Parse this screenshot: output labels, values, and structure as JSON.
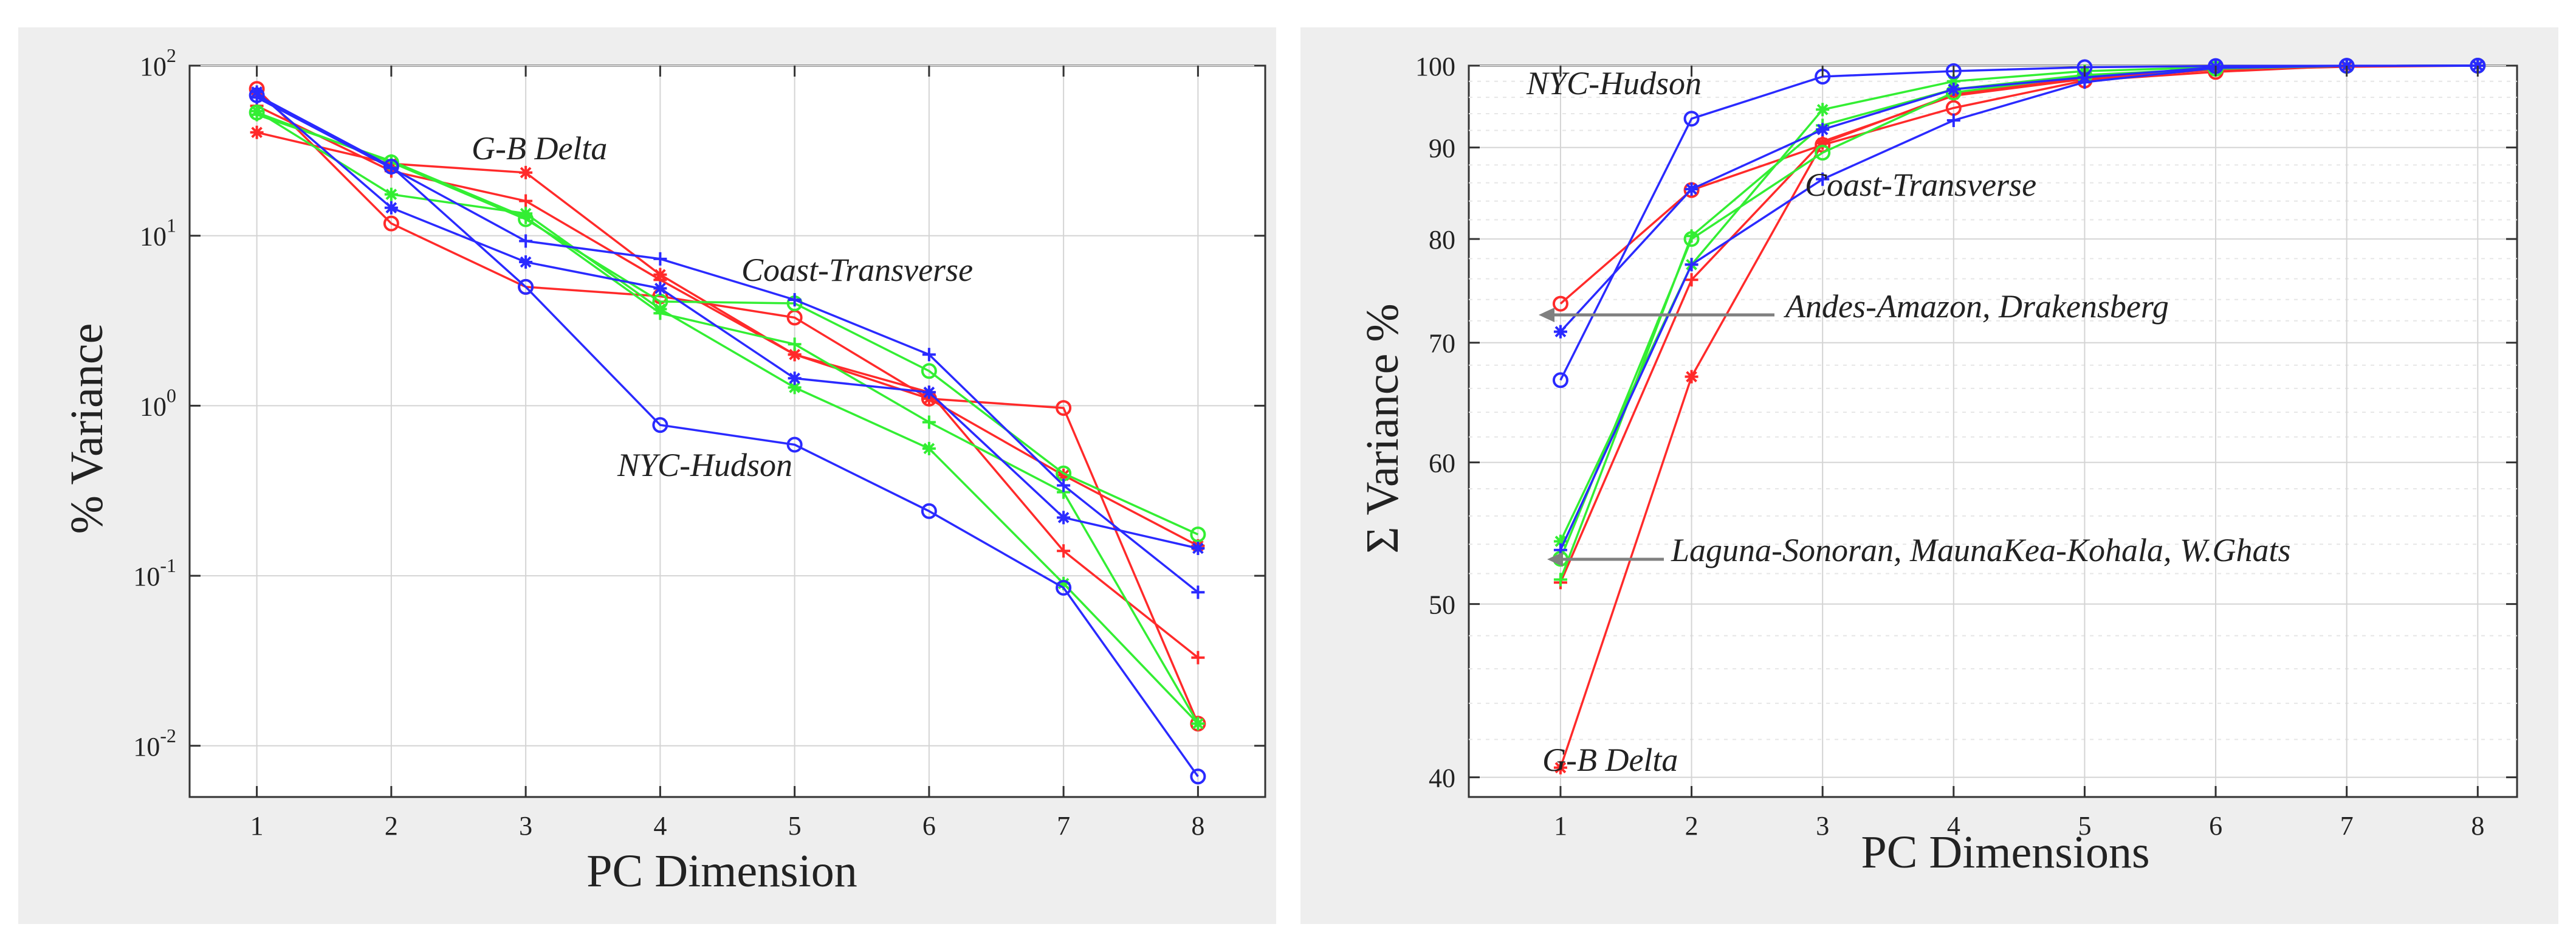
{
  "chart_data": [
    {
      "type": "line",
      "yscale": "log",
      "title": "",
      "xlabel": "PC Dimension",
      "ylabel": "% Variance",
      "xlim": [
        0.5,
        8.5
      ],
      "ylim": [
        0.005,
        100
      ],
      "x_ticks": [
        "1",
        "2",
        "3",
        "4",
        "5",
        "6",
        "7",
        "8"
      ],
      "y_ticks": [
        {
          "base": "10",
          "exp": "-2"
        },
        {
          "base": "10",
          "exp": "-1"
        },
        {
          "base": "10",
          "exp": "0"
        },
        {
          "base": "10",
          "exp": "1"
        },
        {
          "base": "10",
          "exp": "2"
        }
      ],
      "annotations": [
        "G-B Delta",
        "Coast-Transverse",
        "NYC-Hudson"
      ],
      "series": [
        {
          "name": "red-circle",
          "color": "#ff2a2a",
          "marker": "o",
          "values": [
            73,
            11.8,
            5.0,
            4.4,
            3.3,
            1.1,
            0.97,
            0.0135
          ]
        },
        {
          "name": "red-plus",
          "color": "#ff2a2a",
          "marker": "+",
          "values": [
            58,
            24,
            16,
            5.5,
            2.0,
            1.2,
            0.14,
            0.033
          ]
        },
        {
          "name": "red-star",
          "color": "#ff2a2a",
          "marker": "*",
          "values": [
            40.5,
            26.5,
            23.5,
            5.9,
            2.0,
            1.1,
            0.39,
            0.15
          ]
        },
        {
          "name": "green-circle",
          "color": "#33ee33",
          "marker": "o",
          "values": [
            53,
            27,
            12.5,
            4.1,
            4.0,
            1.6,
            0.4,
            0.175
          ]
        },
        {
          "name": "green-plus",
          "color": "#33ee33",
          "marker": "+",
          "values": [
            51.5,
            27.5,
            12.8,
            3.5,
            2.3,
            0.8,
            0.31,
            0.0135
          ]
        },
        {
          "name": "green-star",
          "color": "#33ee33",
          "marker": "*",
          "values": [
            54,
            17.5,
            13.5,
            3.7,
            1.28,
            0.56,
            0.09,
            0.0135
          ]
        },
        {
          "name": "blue-circle",
          "color": "#2a2aff",
          "marker": "o",
          "values": [
            67,
            25.5,
            5.0,
            0.77,
            0.59,
            0.24,
            0.085,
            0.0066
          ]
        },
        {
          "name": "blue-plus",
          "color": "#2a2aff",
          "marker": "+",
          "values": [
            65,
            25,
            9.3,
            7.3,
            4.2,
            2.0,
            0.34,
            0.08
          ]
        },
        {
          "name": "blue-star",
          "color": "#2a2aff",
          "marker": "*",
          "values": [
            70,
            14.6,
            7.0,
            4.9,
            1.45,
            1.2,
            0.22,
            0.145
          ]
        }
      ]
    },
    {
      "type": "line",
      "yscale": "log",
      "title": "",
      "xlabel": "PC Dimensions",
      "ylabel": "Σ Variance %",
      "xlim": [
        0.3,
        8.3
      ],
      "ylim": [
        39,
        100
      ],
      "x_ticks": [
        "1",
        "2",
        "3",
        "4",
        "5",
        "6",
        "7",
        "8"
      ],
      "y_ticks": [
        "40",
        "50",
        "60",
        "70",
        "80",
        "90",
        "100"
      ],
      "annotations": [
        "NYC-Hudson",
        "Coast-Transverse",
        "Andes-Amazon, Drakensberg",
        "Laguna-Sonoran, MaunaKea-Kohala, W.Ghats",
        "G-B Delta"
      ],
      "series": [
        {
          "name": "red-circle",
          "color": "#ff2a2a",
          "marker": "o",
          "values": [
            73.6,
            85.2,
            90.3,
            94.7,
            98.1,
            99.2,
            99.98,
            100
          ]
        },
        {
          "name": "red-plus",
          "color": "#ff2a2a",
          "marker": "+",
          "values": [
            51.4,
            75.9,
            90.7,
            96.2,
            98.3,
            99.5,
            99.97,
            100
          ]
        },
        {
          "name": "red-star",
          "color": "#ff2a2a",
          "marker": "*",
          "values": [
            40.5,
            67.0,
            90.5,
            96.4,
            98.4,
            99.5,
            99.85,
            100
          ]
        },
        {
          "name": "green-circle",
          "color": "#33ee33",
          "marker": "o",
          "values": [
            53.0,
            80.0,
            89.4,
            96.6,
            98.7,
            99.6,
            99.98,
            100
          ]
        },
        {
          "name": "green-plus",
          "color": "#33ee33",
          "marker": "+",
          "values": [
            51.6,
            80.3,
            92.6,
            97.0,
            98.8,
            99.6,
            99.98,
            100
          ]
        },
        {
          "name": "green-star",
          "color": "#33ee33",
          "marker": "*",
          "values": [
            54.2,
            77.4,
            94.5,
            98.0,
            99.3,
            99.8,
            99.98,
            100
          ]
        },
        {
          "name": "blue-circle",
          "color": "#2a2aff",
          "marker": "o",
          "values": [
            66.7,
            93.4,
            98.6,
            99.3,
            99.8,
            99.95,
            99.99,
            100
          ]
        },
        {
          "name": "blue-plus",
          "color": "#2a2aff",
          "marker": "+",
          "values": [
            53.6,
            77.4,
            86.4,
            93.2,
            97.9,
            99.7,
            99.98,
            100
          ]
        },
        {
          "name": "blue-star",
          "color": "#2a2aff",
          "marker": "*",
          "values": [
            71.0,
            85.3,
            92.1,
            97.0,
            98.5,
            99.8,
            99.97,
            100
          ]
        }
      ]
    }
  ]
}
